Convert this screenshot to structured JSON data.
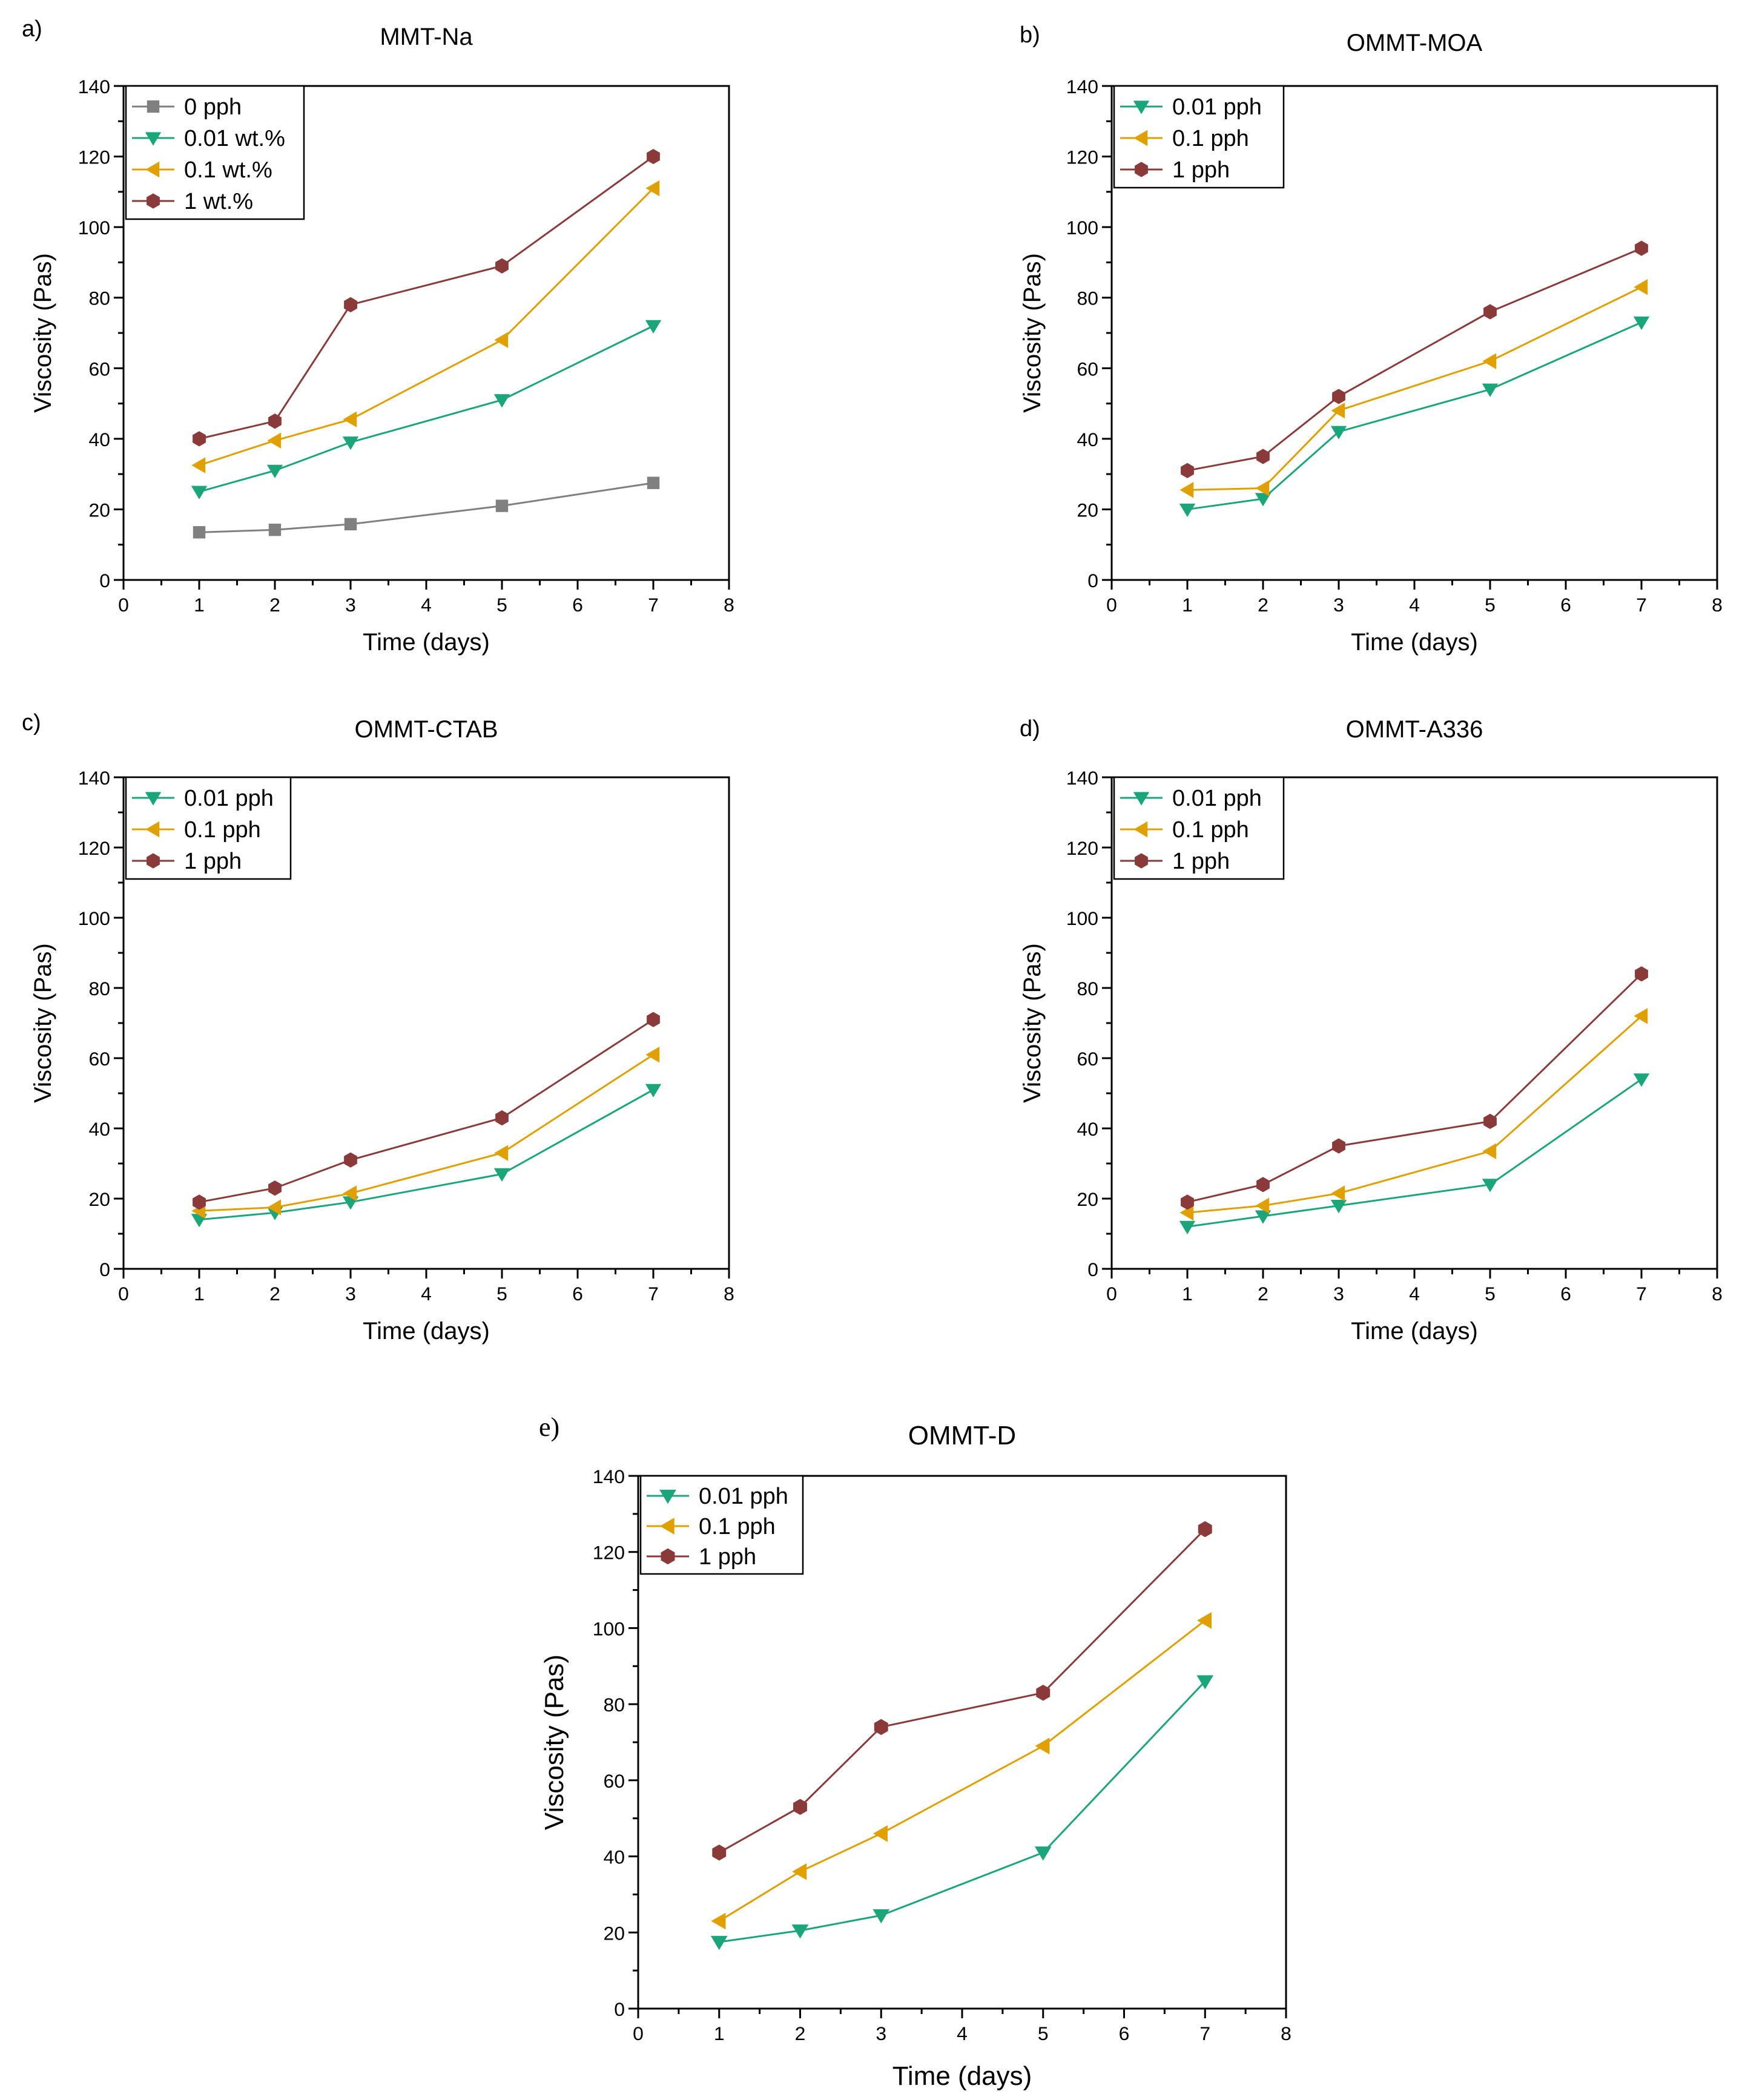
{
  "chart_data": [
    {
      "panel": "a)",
      "type": "line",
      "title": "MMT-Na",
      "xlabel": "Time (days)",
      "ylabel": "Viscosity (Pas)",
      "xlim": [
        0,
        8
      ],
      "ylim": [
        0,
        140
      ],
      "x_ticks": [
        0,
        1,
        2,
        3,
        4,
        5,
        6,
        7,
        8
      ],
      "y_ticks": [
        0,
        20,
        40,
        60,
        80,
        100,
        120,
        140
      ],
      "legend_position": "top-left",
      "x": [
        1,
        2,
        3,
        5,
        7
      ],
      "series": [
        {
          "name": "0 pph",
          "marker": "square",
          "color": "#808080",
          "values": [
            13.5,
            14.2,
            15.8,
            21,
            27.5
          ]
        },
        {
          "name": "0.01 wt.%",
          "marker": "triangle-down",
          "color": "#1aa67a",
          "values": [
            25,
            31,
            39,
            51,
            72
          ]
        },
        {
          "name": "0.1 wt.%",
          "marker": "triangle-left",
          "color": "#e0a000",
          "values": [
            32.5,
            39.5,
            45.5,
            68,
            111
          ]
        },
        {
          "name": "1 wt.%",
          "marker": "hexagon",
          "color": "#8b3a3a",
          "values": [
            40,
            45,
            78,
            89,
            120
          ]
        }
      ]
    },
    {
      "panel": "b)",
      "type": "line",
      "title": "OMMT-MOA",
      "xlabel": "Time (days)",
      "ylabel": "Viscosity (Pas)",
      "xlim": [
        0,
        8
      ],
      "ylim": [
        0,
        140
      ],
      "x_ticks": [
        0,
        1,
        2,
        3,
        4,
        5,
        6,
        7,
        8
      ],
      "y_ticks": [
        0,
        20,
        40,
        60,
        80,
        100,
        120,
        140
      ],
      "legend_position": "top-left",
      "x": [
        1,
        2,
        3,
        5,
        7
      ],
      "series": [
        {
          "name": "0.01 pph",
          "marker": "triangle-down",
          "color": "#1aa67a",
          "values": [
            20,
            23,
            42,
            54,
            73
          ]
        },
        {
          "name": "0.1 pph",
          "marker": "triangle-left",
          "color": "#e0a000",
          "values": [
            25.5,
            26,
            48,
            62,
            83
          ]
        },
        {
          "name": "1 pph",
          "marker": "hexagon",
          "color": "#8b3a3a",
          "values": [
            31,
            35,
            52,
            76,
            94
          ]
        }
      ]
    },
    {
      "panel": "c)",
      "type": "line",
      "title": "OMMT-CTAB",
      "xlabel": "Time (days)",
      "ylabel": "Viscosity (Pas)",
      "xlim": [
        0,
        8
      ],
      "ylim": [
        0,
        140
      ],
      "x_ticks": [
        0,
        1,
        2,
        3,
        4,
        5,
        6,
        7,
        8
      ],
      "y_ticks": [
        0,
        20,
        40,
        60,
        80,
        100,
        120,
        140
      ],
      "legend_position": "top-left",
      "x": [
        1,
        2,
        3,
        5,
        7
      ],
      "series": [
        {
          "name": "0.01 pph",
          "marker": "triangle-down",
          "color": "#1aa67a",
          "values": [
            14,
            16,
            19,
            27,
            51
          ]
        },
        {
          "name": "0.1 pph",
          "marker": "triangle-left",
          "color": "#e0a000",
          "values": [
            16.5,
            17.5,
            21.5,
            33,
            61
          ]
        },
        {
          "name": "1 pph",
          "marker": "hexagon",
          "color": "#8b3a3a",
          "values": [
            19,
            23,
            31,
            43,
            71
          ]
        }
      ]
    },
    {
      "panel": "d)",
      "type": "line",
      "title": "OMMT-A336",
      "xlabel": "Time (days)",
      "ylabel": "Viscosity (Pas)",
      "xlim": [
        0,
        8
      ],
      "ylim": [
        0,
        140
      ],
      "x_ticks": [
        0,
        1,
        2,
        3,
        4,
        5,
        6,
        7,
        8
      ],
      "y_ticks": [
        0,
        20,
        40,
        60,
        80,
        100,
        120,
        140
      ],
      "legend_position": "top-left",
      "x": [
        1,
        2,
        3,
        5,
        7
      ],
      "series": [
        {
          "name": "0.01 pph",
          "marker": "triangle-down",
          "color": "#1aa67a",
          "values": [
            12,
            15,
            18,
            24,
            54
          ]
        },
        {
          "name": "0.1 pph",
          "marker": "triangle-left",
          "color": "#e0a000",
          "values": [
            16,
            18,
            21.5,
            33.5,
            72
          ]
        },
        {
          "name": "1 pph",
          "marker": "hexagon",
          "color": "#8b3a3a",
          "values": [
            19,
            24,
            35,
            42,
            84
          ]
        }
      ]
    },
    {
      "panel": "e)",
      "type": "line",
      "title": "OMMT-D",
      "xlabel": "Time (days)",
      "ylabel": "Viscosity (Pas)",
      "xlim": [
        0,
        8
      ],
      "ylim": [
        0,
        140
      ],
      "x_ticks": [
        0,
        1,
        2,
        3,
        4,
        5,
        6,
        7,
        8
      ],
      "y_ticks": [
        0,
        20,
        40,
        60,
        80,
        100,
        120,
        140
      ],
      "legend_position": "top-left",
      "x": [
        1,
        2,
        3,
        5,
        7
      ],
      "series": [
        {
          "name": "0.01 pph",
          "marker": "triangle-down",
          "color": "#1aa67a",
          "values": [
            17.5,
            20.5,
            24.5,
            41,
            86
          ]
        },
        {
          "name": "0.1 pph",
          "marker": "triangle-left",
          "color": "#e0a000",
          "values": [
            23,
            36,
            46,
            69,
            102
          ]
        },
        {
          "name": "1 pph",
          "marker": "hexagon",
          "color": "#8b3a3a",
          "values": [
            41,
            53,
            74,
            83,
            126
          ]
        }
      ]
    }
  ]
}
